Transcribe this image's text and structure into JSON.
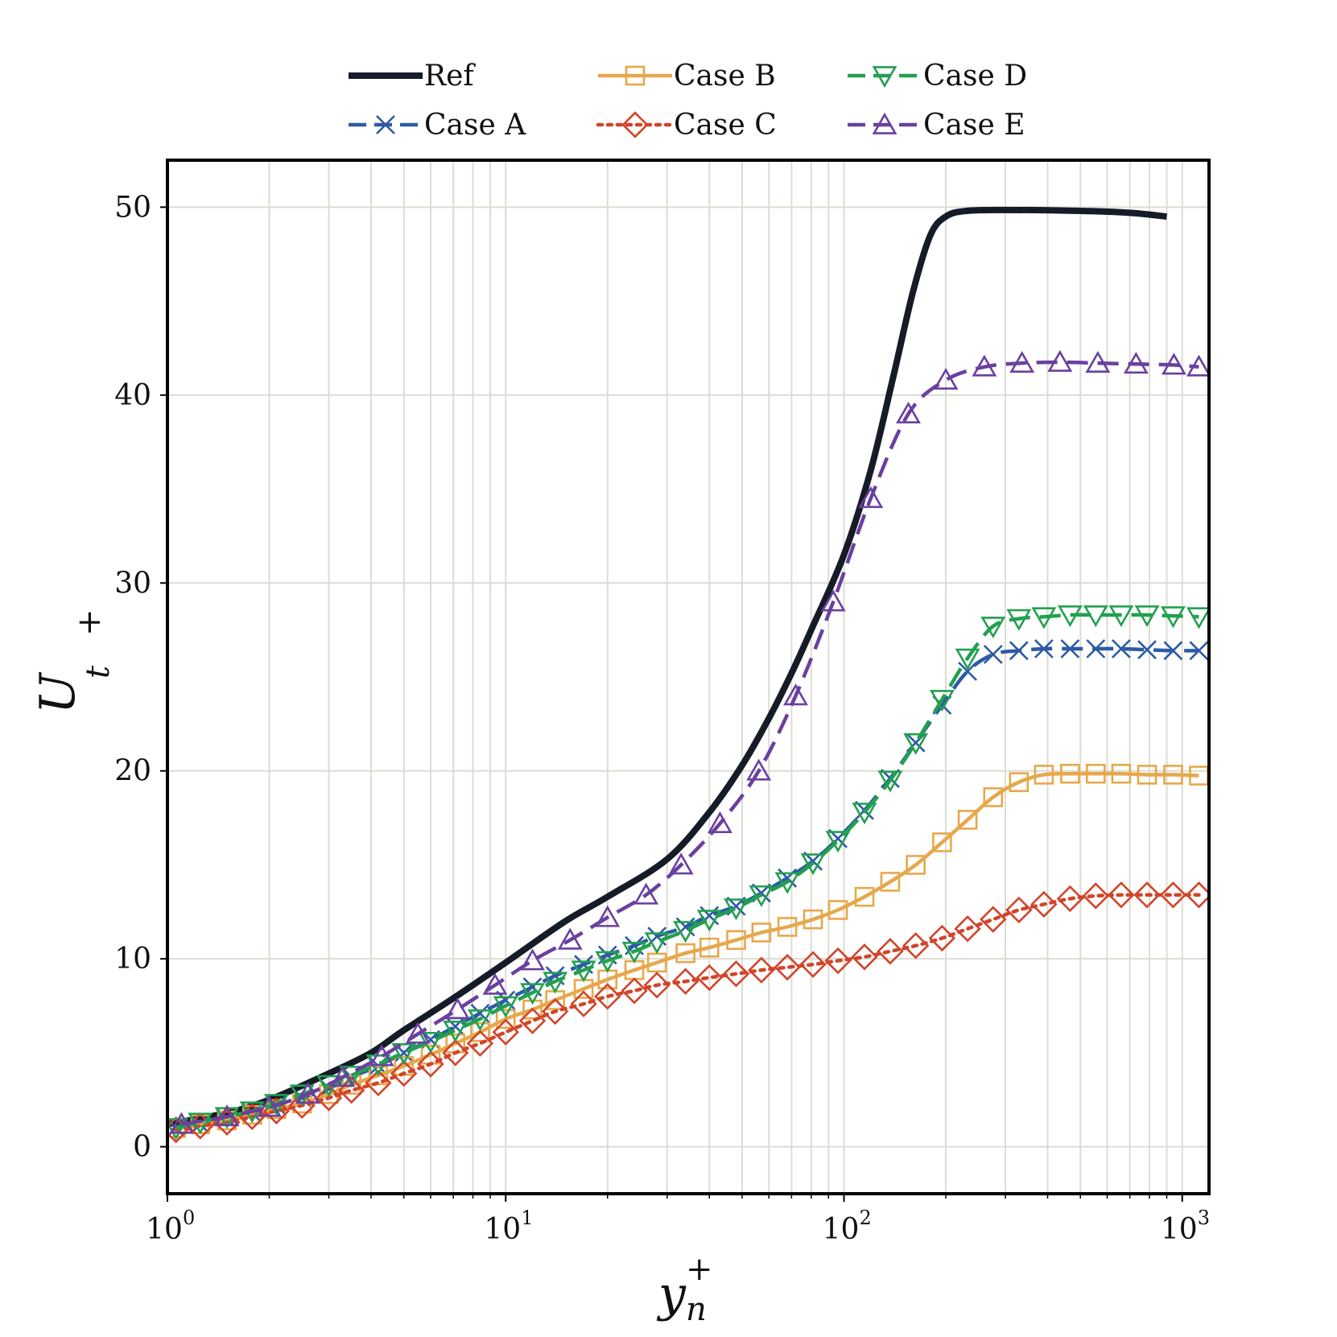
{
  "chart_data": {
    "type": "line",
    "title": "",
    "xlabel": {
      "base": "y",
      "sup": "+",
      "sub": "n"
    },
    "ylabel": {
      "base": "U",
      "sup": "+",
      "sub": "t"
    },
    "xscale": "log",
    "xlim": [
      1,
      1200
    ],
    "ylim": [
      -2.5,
      52.5
    ],
    "grid": true,
    "legend_position": "top-center",
    "x_ticks": [
      {
        "value": 1,
        "base": "10",
        "exp": "0"
      },
      {
        "value": 10,
        "base": "10",
        "exp": "1"
      },
      {
        "value": 100,
        "base": "10",
        "exp": "2"
      },
      {
        "value": 1000,
        "base": "10",
        "exp": "3"
      }
    ],
    "y_ticks": [
      {
        "value": 0,
        "label": "0"
      },
      {
        "value": 10,
        "label": "10"
      },
      {
        "value": 20,
        "label": "20"
      },
      {
        "value": 30,
        "label": "30"
      },
      {
        "value": 40,
        "label": "40"
      },
      {
        "value": 50,
        "label": "50"
      }
    ],
    "series": [
      {
        "name": "Ref",
        "color": "#151c27",
        "dash": "solid",
        "marker": "none",
        "x": [
          1,
          1.5,
          2,
          3,
          4,
          5,
          7,
          10,
          15,
          20,
          30,
          40,
          50,
          60,
          70,
          80,
          100,
          120,
          140,
          160,
          180,
          200,
          230,
          300,
          500,
          700,
          900
        ],
        "y": [
          1.2,
          1.8,
          2.5,
          3.9,
          5.0,
          6.2,
          7.9,
          9.8,
          12.0,
          13.3,
          15.3,
          17.8,
          20.3,
          22.8,
          25.2,
          27.5,
          31.5,
          36.0,
          41.0,
          45.5,
          48.5,
          49.5,
          49.8,
          49.85,
          49.8,
          49.7,
          49.5
        ]
      },
      {
        "name": "Case A",
        "color": "#2d5aa5",
        "dash": "dashed",
        "marker": "x",
        "x": [
          1.06,
          1.25,
          1.5,
          1.78,
          2.1,
          2.5,
          3.0,
          3.5,
          4.2,
          5.0,
          6.0,
          7.1,
          8.4,
          10,
          12,
          14,
          17,
          20,
          24,
          28,
          34,
          40,
          48,
          57,
          68,
          81,
          96,
          115,
          137,
          163,
          195,
          232,
          276,
          329,
          390,
          466,
          555,
          660,
          787,
          940,
          1120
        ],
        "y": [
          1.0,
          1.2,
          1.5,
          1.8,
          2.2,
          2.6,
          3.1,
          3.7,
          4.3,
          5.0,
          5.7,
          6.4,
          7.1,
          7.8,
          8.5,
          9.1,
          9.7,
          10.2,
          10.7,
          11.2,
          11.7,
          12.3,
          12.8,
          13.5,
          14.3,
          15.2,
          16.4,
          17.9,
          19.6,
          21.5,
          23.5,
          25.3,
          26.2,
          26.4,
          26.5,
          26.5,
          26.5,
          26.5,
          26.45,
          26.4,
          26.4
        ]
      },
      {
        "name": "Case B",
        "color": "#e6a84b",
        "dash": "solid",
        "marker": "square",
        "x": [
          1.06,
          1.25,
          1.5,
          1.78,
          2.1,
          2.5,
          3.0,
          3.5,
          4.2,
          5.0,
          6.0,
          7.1,
          8.4,
          10,
          12,
          14,
          17,
          20,
          24,
          28,
          34,
          40,
          48,
          57,
          68,
          81,
          96,
          115,
          137,
          163,
          195,
          232,
          276,
          329,
          390,
          466,
          555,
          660,
          787,
          940,
          1120
        ],
        "y": [
          1.0,
          1.2,
          1.4,
          1.7,
          2.0,
          2.3,
          2.8,
          3.3,
          3.8,
          4.3,
          4.9,
          5.5,
          6.1,
          6.8,
          7.3,
          7.8,
          8.4,
          8.9,
          9.4,
          9.8,
          10.3,
          10.6,
          11.0,
          11.4,
          11.7,
          12.1,
          12.6,
          13.3,
          14.1,
          15.0,
          16.2,
          17.4,
          18.6,
          19.4,
          19.8,
          19.85,
          19.85,
          19.85,
          19.8,
          19.8,
          19.75
        ]
      },
      {
        "name": "Case C",
        "color": "#d2442a",
        "dash": "dotted",
        "marker": "diamond",
        "x": [
          1.06,
          1.25,
          1.5,
          1.78,
          2.1,
          2.5,
          3.0,
          3.5,
          4.2,
          5.0,
          6.0,
          7.1,
          8.4,
          10,
          12,
          14,
          17,
          20,
          24,
          28,
          34,
          40,
          48,
          57,
          68,
          81,
          96,
          115,
          137,
          163,
          195,
          232,
          276,
          329,
          390,
          466,
          555,
          660,
          787,
          940,
          1120
        ],
        "y": [
          0.9,
          1.1,
          1.3,
          1.6,
          1.9,
          2.2,
          2.6,
          3.0,
          3.4,
          3.9,
          4.4,
          5.0,
          5.5,
          6.1,
          6.7,
          7.2,
          7.6,
          8.0,
          8.3,
          8.6,
          8.8,
          9.0,
          9.2,
          9.4,
          9.55,
          9.7,
          9.9,
          10.1,
          10.4,
          10.7,
          11.1,
          11.6,
          12.1,
          12.6,
          12.9,
          13.2,
          13.35,
          13.4,
          13.4,
          13.4,
          13.4
        ]
      },
      {
        "name": "Case D",
        "color": "#22a050",
        "dash": "dashed",
        "marker": "triangle-down",
        "x": [
          1.06,
          1.25,
          1.5,
          1.78,
          2.1,
          2.5,
          3.0,
          3.5,
          4.2,
          5.0,
          6.0,
          7.1,
          8.4,
          10,
          12,
          14,
          17,
          20,
          24,
          28,
          34,
          40,
          48,
          57,
          68,
          81,
          96,
          115,
          137,
          163,
          195,
          232,
          276,
          329,
          390,
          466,
          555,
          660,
          787,
          940,
          1120
        ],
        "y": [
          1.0,
          1.3,
          1.6,
          1.9,
          2.3,
          2.8,
          3.3,
          3.8,
          4.4,
          5.0,
          5.6,
          6.2,
          6.8,
          7.5,
          8.2,
          8.8,
          9.4,
          9.9,
          10.4,
          10.9,
          11.5,
          12.1,
          12.7,
          13.4,
          14.1,
          15.1,
          16.3,
          17.8,
          19.5,
          21.5,
          23.8,
          26.0,
          27.7,
          28.1,
          28.2,
          28.3,
          28.3,
          28.3,
          28.3,
          28.25,
          28.2
        ]
      },
      {
        "name": "Case E",
        "color": "#6b3fa0",
        "dash": "dashed",
        "marker": "triangle-up",
        "x": [
          1.1,
          1.5,
          2.0,
          2.6,
          3.3,
          4.3,
          5.5,
          7.2,
          9.3,
          12,
          15.5,
          20,
          26,
          33,
          43,
          56,
          72,
          93,
          120,
          155,
          200,
          260,
          336,
          435,
          563,
          730,
          945,
          1120
        ],
        "y": [
          1.2,
          1.6,
          2.1,
          2.8,
          3.7,
          4.8,
          6.0,
          7.3,
          8.6,
          9.9,
          11.0,
          12.2,
          13.4,
          15.0,
          17.2,
          20.0,
          24.0,
          29.0,
          34.5,
          39.0,
          40.8,
          41.5,
          41.7,
          41.75,
          41.7,
          41.65,
          41.6,
          41.5
        ]
      }
    ]
  }
}
